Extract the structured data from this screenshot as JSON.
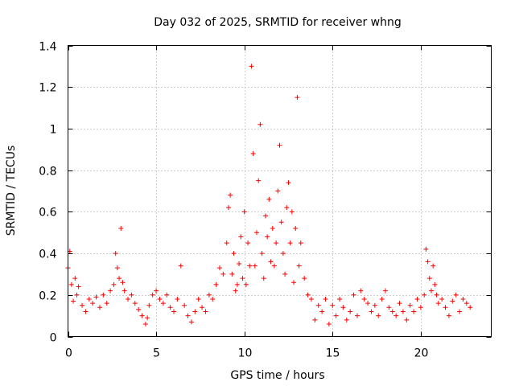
{
  "chart_data": {
    "type": "scatter",
    "title": "Day 032 of 2025, SRMTID for receiver whng",
    "xlabel": "GPS time / hours",
    "ylabel": "SRMTID / TECUs",
    "xlim": [
      0,
      24
    ],
    "ylim": [
      0,
      1.4
    ],
    "xticks": [
      0,
      5,
      10,
      15,
      20
    ],
    "xtick_labels": [
      "0",
      "5",
      "10",
      "15",
      "20"
    ],
    "yticks": [
      0,
      0.2,
      0.4,
      0.6,
      0.8,
      1.0,
      1.2,
      1.4
    ],
    "ytick_labels": [
      "0",
      "0.2",
      "0.4",
      "0.6",
      "0.8",
      "1",
      "1.2",
      "1.4"
    ],
    "grid": true,
    "marker": "+",
    "color": "#ff0000",
    "series": [
      {
        "name": "SRMTID",
        "x": [
          0.0,
          0.1,
          0.2,
          0.3,
          0.4,
          0.5,
          0.6,
          0.8,
          1.0,
          1.2,
          1.4,
          1.6,
          1.8,
          2.0,
          2.2,
          2.4,
          2.6,
          2.7,
          2.8,
          2.9,
          3.0,
          3.1,
          3.2,
          3.4,
          3.6,
          3.8,
          4.0,
          4.2,
          4.4,
          4.5,
          4.6,
          4.8,
          5.0,
          5.2,
          5.4,
          5.6,
          5.8,
          6.0,
          6.2,
          6.4,
          6.6,
          6.8,
          7.0,
          7.2,
          7.4,
          7.6,
          7.8,
          8.0,
          8.2,
          8.4,
          8.6,
          8.8,
          9.0,
          9.1,
          9.2,
          9.3,
          9.4,
          9.5,
          9.6,
          9.7,
          9.8,
          9.9,
          10.0,
          10.1,
          10.2,
          10.3,
          10.4,
          10.5,
          10.6,
          10.7,
          10.8,
          10.9,
          11.0,
          11.1,
          11.2,
          11.3,
          11.4,
          11.5,
          11.6,
          11.7,
          11.8,
          11.9,
          12.0,
          12.1,
          12.2,
          12.3,
          12.4,
          12.5,
          12.6,
          12.7,
          12.8,
          12.9,
          13.0,
          13.1,
          13.2,
          13.4,
          13.6,
          13.8,
          14.0,
          14.2,
          14.4,
          14.6,
          14.8,
          15.0,
          15.2,
          15.4,
          15.6,
          15.8,
          16.0,
          16.2,
          16.4,
          16.6,
          16.8,
          17.0,
          17.2,
          17.4,
          17.6,
          17.8,
          18.0,
          18.2,
          18.4,
          18.6,
          18.8,
          19.0,
          19.2,
          19.4,
          19.6,
          19.8,
          20.0,
          20.2,
          20.3,
          20.4,
          20.5,
          20.6,
          20.7,
          20.8,
          20.9,
          21.0,
          21.2,
          21.4,
          21.6,
          21.8,
          22.0,
          22.2,
          22.4,
          22.6,
          22.8
        ],
        "y": [
          0.33,
          0.41,
          0.25,
          0.17,
          0.28,
          0.2,
          0.24,
          0.15,
          0.12,
          0.18,
          0.16,
          0.19,
          0.14,
          0.2,
          0.16,
          0.22,
          0.25,
          0.4,
          0.33,
          0.28,
          0.52,
          0.26,
          0.22,
          0.18,
          0.2,
          0.16,
          0.13,
          0.1,
          0.06,
          0.09,
          0.15,
          0.2,
          0.22,
          0.18,
          0.16,
          0.2,
          0.14,
          0.12,
          0.18,
          0.34,
          0.15,
          0.1,
          0.07,
          0.12,
          0.18,
          0.14,
          0.12,
          0.2,
          0.18,
          0.25,
          0.33,
          0.3,
          0.45,
          0.62,
          0.68,
          0.3,
          0.4,
          0.22,
          0.25,
          0.35,
          0.48,
          0.28,
          0.6,
          0.25,
          0.45,
          0.34,
          1.3,
          0.88,
          0.34,
          0.5,
          0.75,
          1.02,
          0.4,
          0.28,
          0.58,
          0.48,
          0.66,
          0.36,
          0.52,
          0.34,
          0.45,
          0.7,
          0.92,
          0.55,
          0.4,
          0.3,
          0.62,
          0.74,
          0.45,
          0.6,
          0.26,
          0.52,
          1.15,
          0.34,
          0.45,
          0.28,
          0.2,
          0.18,
          0.08,
          0.15,
          0.12,
          0.18,
          0.06,
          0.15,
          0.1,
          0.18,
          0.14,
          0.08,
          0.12,
          0.2,
          0.1,
          0.22,
          0.18,
          0.16,
          0.12,
          0.15,
          0.1,
          0.18,
          0.22,
          0.14,
          0.12,
          0.1,
          0.16,
          0.12,
          0.08,
          0.15,
          0.12,
          0.18,
          0.14,
          0.2,
          0.42,
          0.36,
          0.28,
          0.22,
          0.34,
          0.25,
          0.2,
          0.16,
          0.18,
          0.14,
          0.1,
          0.17,
          0.2,
          0.12,
          0.18,
          0.16,
          0.14
        ]
      }
    ]
  }
}
